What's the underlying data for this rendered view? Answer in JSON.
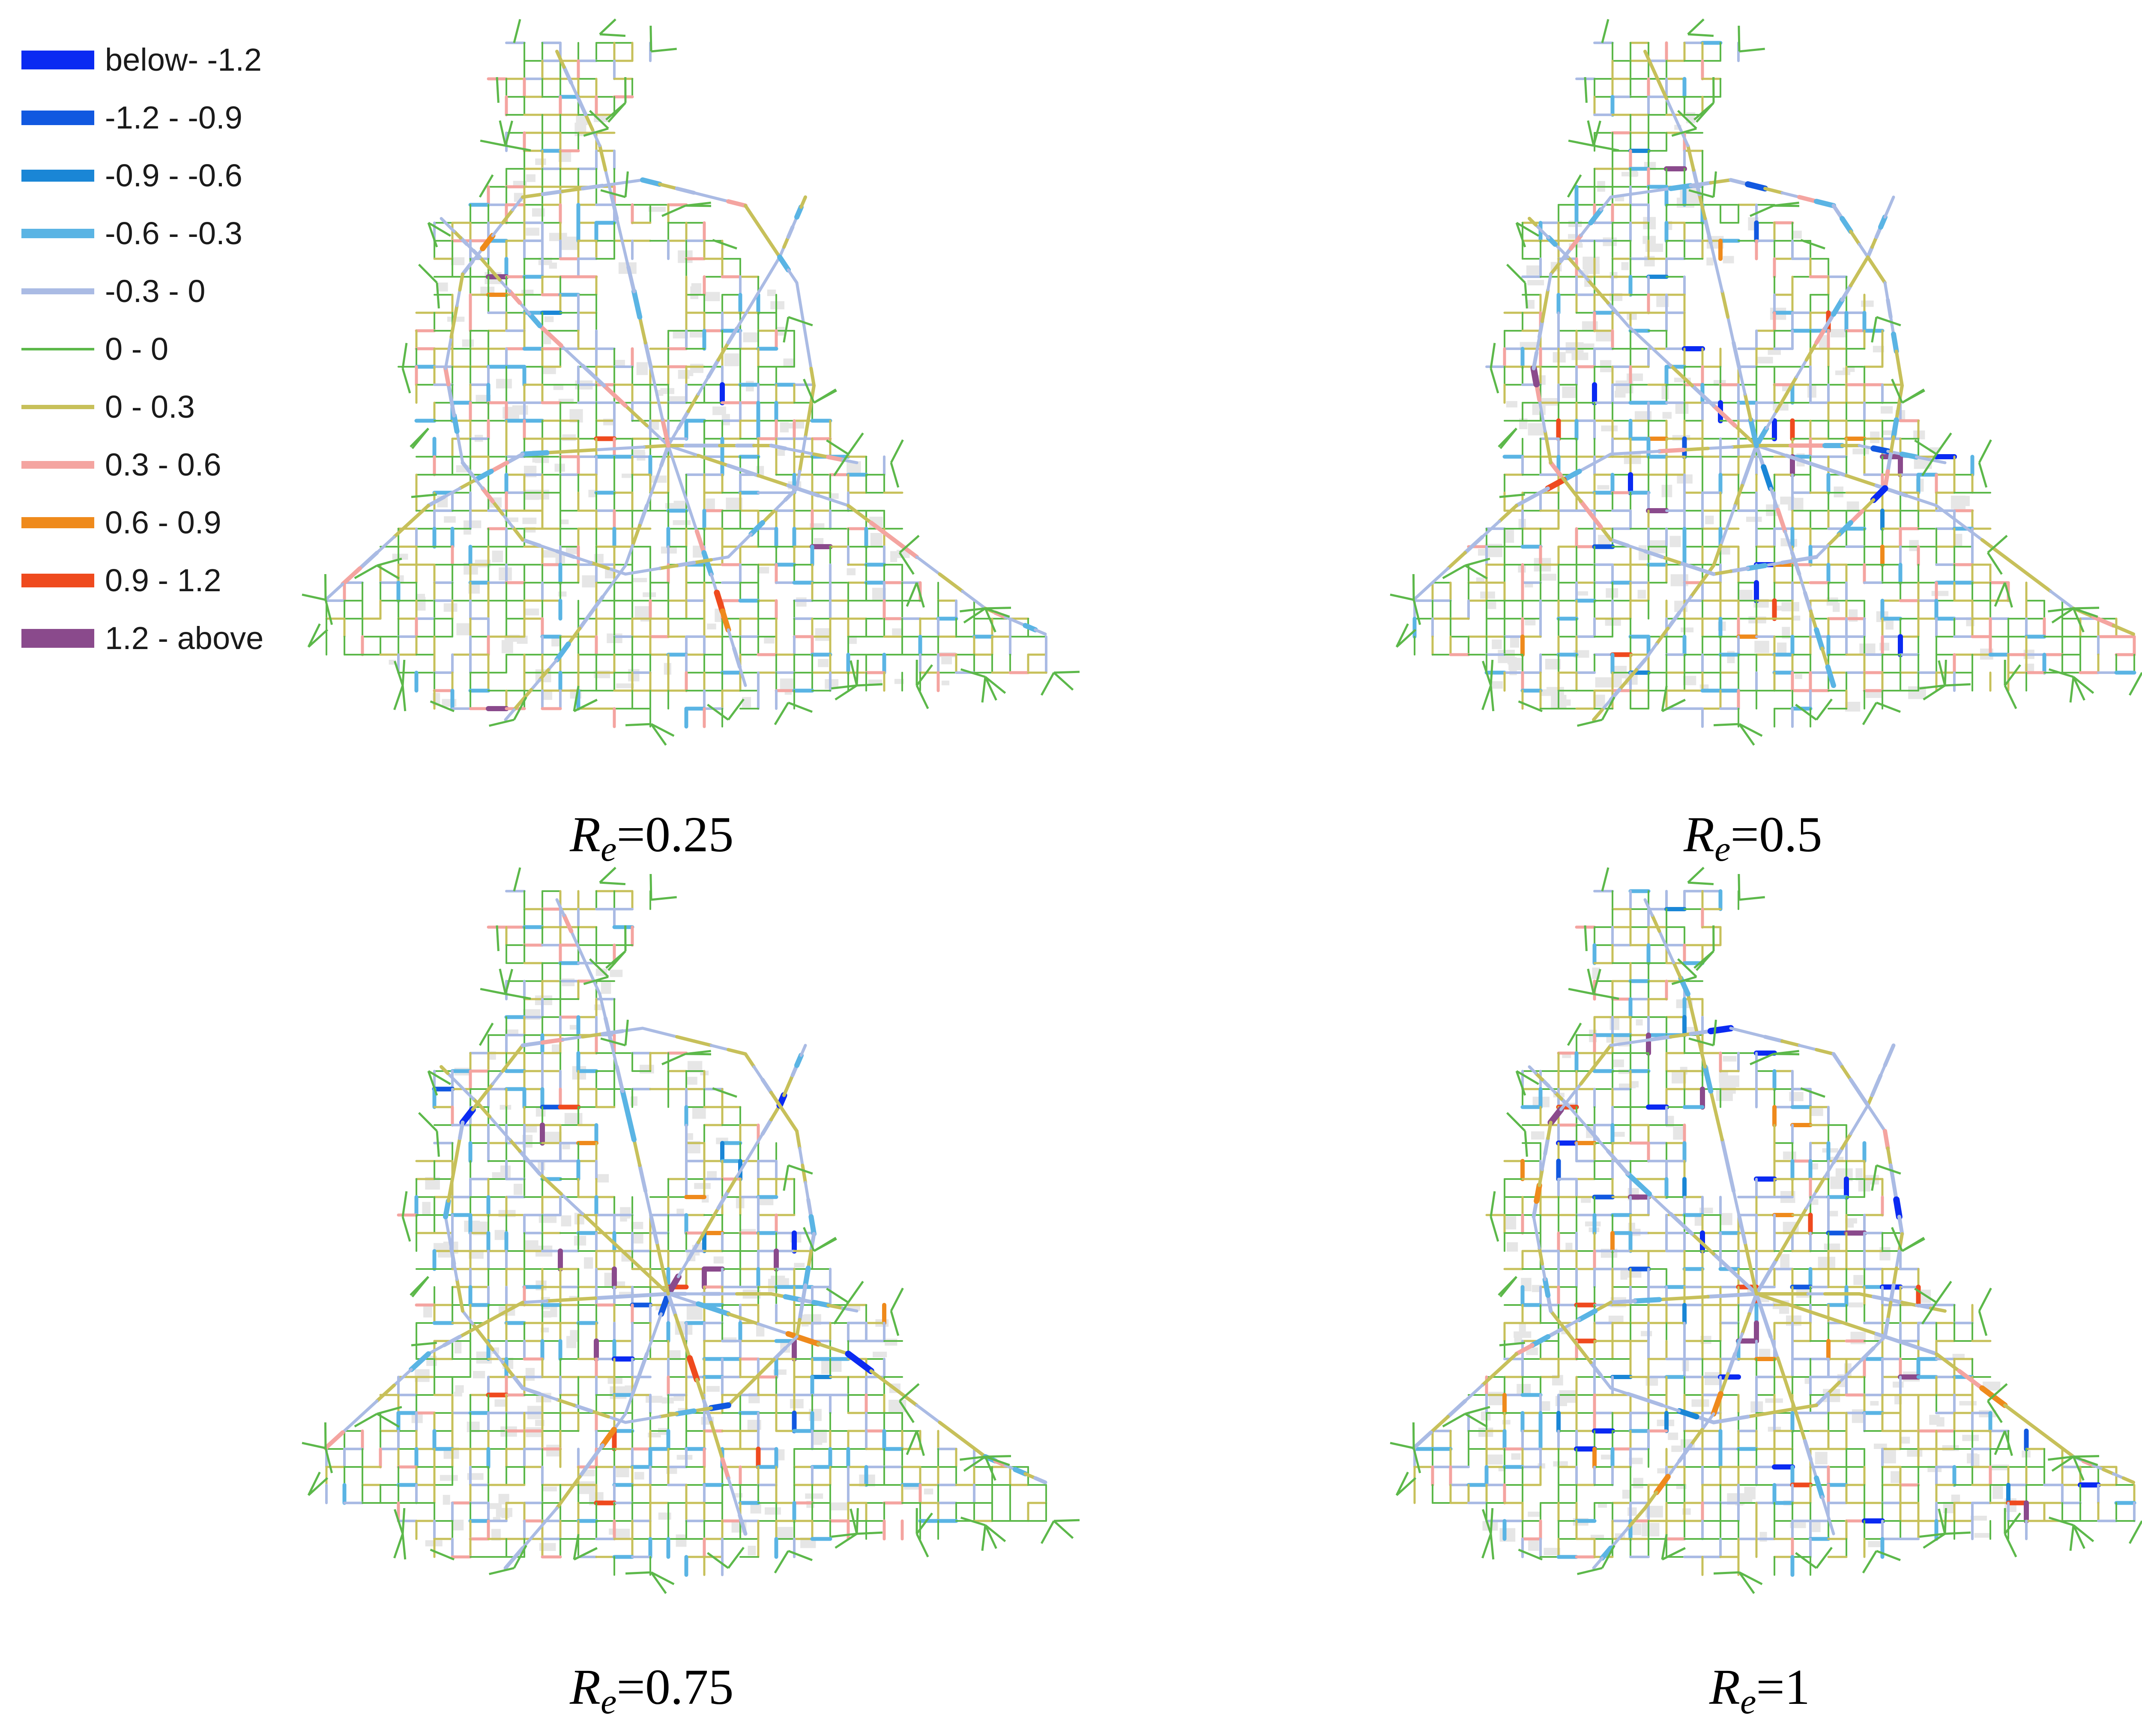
{
  "legend": {
    "items": [
      {
        "label": "below- -1.2",
        "color": "#0a2af2",
        "range": [
          null,
          -1.2
        ]
      },
      {
        "label": "-1.2 - -0.9",
        "color": "#1158e0",
        "range": [
          -1.2,
          -0.9
        ]
      },
      {
        "label": "-0.9 - -0.6",
        "color": "#1a86d6",
        "range": [
          -0.9,
          -0.6
        ]
      },
      {
        "label": "-0.6 - -0.3",
        "color": "#5ab4e4",
        "range": [
          -0.6,
          -0.3
        ]
      },
      {
        "label": "-0.3 - 0",
        "color": "#aabbe4",
        "range": [
          -0.3,
          0
        ]
      },
      {
        "label": "0 - 0",
        "color": "#5cb84a",
        "range": [
          0,
          0
        ]
      },
      {
        "label": "0 - 0.3",
        "color": "#c7c05a",
        "range": [
          0,
          0.3
        ]
      },
      {
        "label": "0.3 - 0.6",
        "color": "#f4a4a0",
        "range": [
          0.3,
          0.6
        ]
      },
      {
        "label": "0.6 - 0.9",
        "color": "#ef8a1c",
        "range": [
          0.6,
          0.9
        ]
      },
      {
        "label": "0.9 - 1.2",
        "color": "#ef4a1e",
        "range": [
          0.9,
          1.2
        ]
      },
      {
        "label": "1.2 - above",
        "color": "#8a4a8c",
        "range": [
          1.2,
          null
        ]
      }
    ]
  },
  "panels": [
    {
      "symbol": "R",
      "subscript": "e",
      "value": "=0.25",
      "intensity": 0.25
    },
    {
      "symbol": "R",
      "subscript": "e",
      "value": "=0.5",
      "intensity": 0.5
    },
    {
      "symbol": "R",
      "subscript": "e",
      "value": "=0.75",
      "intensity": 0.75
    },
    {
      "symbol": "R",
      "subscript": "e",
      "value": "=1",
      "intensity": 1
    }
  ]
}
